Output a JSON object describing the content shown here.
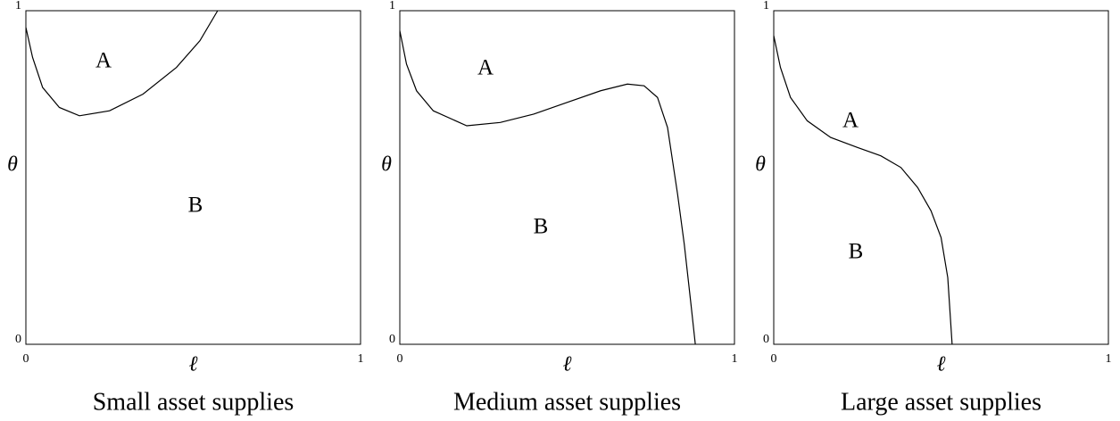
{
  "chart_data": [
    {
      "type": "line",
      "title": "Small asset supplies",
      "xlabel": "ℓ",
      "ylabel": "θ",
      "annotations": [
        "A",
        "B"
      ],
      "color": "#000000",
      "x": [
        0,
        0.02,
        0.05,
        0.1,
        0.16,
        0.25,
        0.35,
        0.45,
        0.52,
        0.573
      ],
      "values": [
        0.95,
        0.86,
        0.77,
        0.71,
        0.685,
        0.7,
        0.75,
        0.83,
        0.91,
        1.0
      ],
      "xlim": [
        0,
        1
      ],
      "ylim": [
        0,
        1
      ],
      "xticks": [
        0,
        1
      ],
      "yticks": [
        0,
        1
      ]
    },
    {
      "type": "line",
      "title": "Medium asset supplies",
      "xlabel": "ℓ",
      "ylabel": "θ",
      "annotations": [
        "A",
        "B"
      ],
      "color": "#000000",
      "x": [
        0,
        0.02,
        0.05,
        0.1,
        0.2,
        0.3,
        0.4,
        0.5,
        0.6,
        0.68,
        0.73,
        0.77,
        0.8,
        0.83,
        0.85,
        0.87,
        0.883
      ],
      "values": [
        0.94,
        0.84,
        0.76,
        0.7,
        0.655,
        0.665,
        0.69,
        0.725,
        0.76,
        0.78,
        0.775,
        0.74,
        0.65,
        0.45,
        0.3,
        0.12,
        0
      ],
      "xlim": [
        0,
        1
      ],
      "ylim": [
        0,
        1
      ],
      "xticks": [
        0,
        1
      ],
      "yticks": [
        0,
        1
      ]
    },
    {
      "type": "line",
      "title": "Large asset supplies",
      "xlabel": "ℓ",
      "ylabel": "θ",
      "annotations": [
        "A",
        "B"
      ],
      "color": "#000000",
      "x": [
        0,
        0.02,
        0.05,
        0.1,
        0.17,
        0.25,
        0.32,
        0.38,
        0.43,
        0.47,
        0.5,
        0.52,
        0.533
      ],
      "values": [
        0.925,
        0.83,
        0.74,
        0.67,
        0.62,
        0.59,
        0.565,
        0.53,
        0.47,
        0.4,
        0.32,
        0.2,
        0
      ],
      "xlim": [
        0,
        1
      ],
      "ylim": [
        0,
        1
      ],
      "xticks": [
        0,
        1
      ],
      "yticks": [
        0,
        1
      ]
    }
  ]
}
